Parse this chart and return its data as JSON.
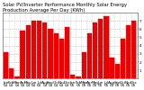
{
  "title": "Solar PV/Inverter Performance Monthly Solar Energy Production Average Per Day (KWh)",
  "months": [
    "Jan\n04",
    "Feb\n04",
    "Mar\n04",
    "Apr\n04",
    "May\n04",
    "Jun\n04",
    "Jul\n04",
    "Aug\n04",
    "Sep\n04",
    "Oct\n04",
    "Nov\n04",
    "Dec\n04",
    "Jan\n05",
    "Feb\n05",
    "Mar\n05",
    "Apr\n05",
    "May\n05",
    "Jun\n05",
    "Jul\n05",
    "Aug\n05",
    "Sep\n05",
    "Oct\n05",
    "Nov\n05",
    "Dec\n05"
  ],
  "values": [
    3.2,
    1.2,
    0.3,
    5.8,
    6.5,
    7.0,
    7.0,
    6.8,
    6.0,
    5.5,
    4.8,
    6.2,
    0.5,
    0.3,
    3.2,
    5.5,
    6.8,
    7.2,
    7.5,
    2.5,
    1.8,
    4.8,
    6.5,
    7.0
  ],
  "bar_color": "#ee0000",
  "bar_edge_color": "#cc0000",
  "background_color": "#ffffff",
  "grid_color": "#999999",
  "ylim": [
    0,
    8
  ],
  "yticks": [
    1,
    2,
    3,
    4,
    5,
    6,
    7
  ],
  "ytick_labels": [
    "1",
    "2",
    "3",
    "4",
    "5",
    "6",
    "7"
  ],
  "title_fontsize": 3.8,
  "tick_fontsize": 3.0
}
